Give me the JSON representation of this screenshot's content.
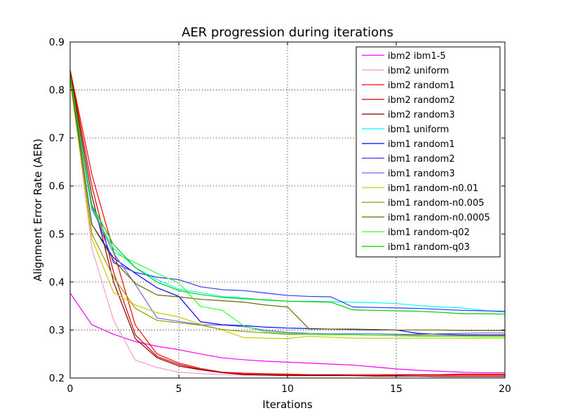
{
  "chart_data": {
    "type": "line",
    "title": "AER progression during iterations",
    "xlabel": "Iterations",
    "ylabel": "Alignment Error Rate (AER)",
    "xlim": [
      0,
      20
    ],
    "ylim": [
      0.2,
      0.9
    ],
    "xticks": [
      0,
      5,
      10,
      15,
      20
    ],
    "yticks": [
      0.2,
      0.3,
      0.4,
      0.5,
      0.6,
      0.7,
      0.8,
      0.9
    ],
    "xtick_labels": [
      "0",
      "5",
      "10",
      "15",
      "20"
    ],
    "ytick_labels": [
      "0.2",
      "0.3",
      "0.4",
      "0.5",
      "0.6",
      "0.7",
      "0.8",
      "0.9"
    ],
    "grid": true,
    "legend_position": "top-right",
    "x": [
      0,
      1,
      2,
      3,
      4,
      5,
      6,
      7,
      8,
      9,
      10,
      11,
      12,
      13,
      14,
      15,
      16,
      17,
      18,
      19,
      20
    ],
    "series": [
      {
        "name": "ibm2 ibm1-5",
        "color": "#ff00ff",
        "values": [
          0.377,
          0.311,
          0.291,
          0.276,
          0.266,
          0.259,
          0.25,
          0.242,
          0.238,
          0.235,
          0.233,
          0.231,
          0.229,
          0.227,
          0.223,
          0.219,
          0.216,
          0.214,
          0.212,
          0.211,
          0.211
        ]
      },
      {
        "name": "ibm2 uniform",
        "color": "#ff99cc",
        "values": [
          0.838,
          0.47,
          0.32,
          0.237,
          0.222,
          0.212,
          0.209,
          0.207,
          0.206,
          0.206,
          0.205,
          0.205,
          0.205,
          0.205,
          0.205,
          0.205,
          0.205,
          0.205,
          0.205,
          0.205,
          0.205
        ]
      },
      {
        "name": "ibm2 random1",
        "color": "#ff0000",
        "values": [
          0.842,
          0.624,
          0.464,
          0.31,
          0.25,
          0.231,
          0.22,
          0.212,
          0.21,
          0.209,
          0.208,
          0.207,
          0.207,
          0.207,
          0.207,
          0.207,
          0.207,
          0.206,
          0.206,
          0.206,
          0.206
        ]
      },
      {
        "name": "ibm2 random2",
        "color": "#cc0000",
        "values": [
          0.84,
          0.6,
          0.42,
          0.29,
          0.245,
          0.228,
          0.218,
          0.211,
          0.208,
          0.207,
          0.206,
          0.206,
          0.206,
          0.205,
          0.205,
          0.206,
          0.207,
          0.207,
          0.208,
          0.208,
          0.208
        ]
      },
      {
        "name": "ibm2 random3",
        "color": "#800000",
        "values": [
          0.836,
          0.58,
          0.4,
          0.282,
          0.242,
          0.225,
          0.217,
          0.211,
          0.207,
          0.206,
          0.205,
          0.205,
          0.205,
          0.205,
          0.204,
          0.204,
          0.204,
          0.203,
          0.203,
          0.203,
          0.203
        ]
      },
      {
        "name": "ibm1 uniform",
        "color": "#00ffff",
        "values": [
          0.825,
          0.55,
          0.47,
          0.43,
          0.405,
          0.385,
          0.378,
          0.37,
          0.367,
          0.362,
          0.36,
          0.36,
          0.359,
          0.358,
          0.357,
          0.355,
          0.351,
          0.348,
          0.346,
          0.341,
          0.337
        ]
      },
      {
        "name": "ibm1 random1",
        "color": "#0000ff",
        "values": [
          0.828,
          0.52,
          0.45,
          0.418,
          0.388,
          0.37,
          0.317,
          0.311,
          0.309,
          0.306,
          0.304,
          0.303,
          0.302,
          0.301,
          0.3,
          0.3,
          0.293,
          0.291,
          0.29,
          0.29,
          0.29
        ]
      },
      {
        "name": "ibm1 random2",
        "color": "#3333ff",
        "values": [
          0.826,
          0.56,
          0.44,
          0.42,
          0.41,
          0.405,
          0.39,
          0.384,
          0.382,
          0.377,
          0.372,
          0.37,
          0.369,
          0.348,
          0.347,
          0.346,
          0.345,
          0.343,
          0.341,
          0.34,
          0.339
        ]
      },
      {
        "name": "ibm1 random3",
        "color": "#6666ff",
        "values": [
          0.824,
          0.555,
          0.46,
          0.395,
          0.325,
          0.318,
          0.311,
          0.31,
          0.307,
          0.299,
          0.295,
          0.293,
          0.292,
          0.292,
          0.292,
          0.291,
          0.291,
          0.292,
          0.293,
          0.294,
          0.294
        ]
      },
      {
        "name": "ibm1 random-n0.01",
        "color": "#cccc00",
        "values": [
          0.82,
          0.49,
          0.378,
          0.352,
          0.336,
          0.327,
          0.312,
          0.3,
          0.284,
          0.283,
          0.282,
          0.287,
          0.285,
          0.283,
          0.283,
          0.283,
          0.283,
          0.283,
          0.283,
          0.283,
          0.283
        ]
      },
      {
        "name": "ibm1 random-n0.005",
        "color": "#999900",
        "values": [
          0.822,
          0.5,
          0.41,
          0.345,
          0.32,
          0.315,
          0.31,
          0.301,
          0.297,
          0.294,
          0.291,
          0.291,
          0.29,
          0.29,
          0.289,
          0.289,
          0.289,
          0.288,
          0.288,
          0.288,
          0.288
        ]
      },
      {
        "name": "ibm1 random-n0.0005",
        "color": "#666600",
        "values": [
          0.828,
          0.52,
          0.445,
          0.397,
          0.373,
          0.369,
          0.364,
          0.361,
          0.358,
          0.352,
          0.348,
          0.302,
          0.302,
          0.302,
          0.301,
          0.3,
          0.3,
          0.3,
          0.299,
          0.299,
          0.299
        ]
      },
      {
        "name": "ibm1 random-q02",
        "color": "#33ff33",
        "values": [
          0.83,
          0.56,
          0.462,
          0.44,
          0.418,
          0.398,
          0.349,
          0.341,
          0.308,
          0.296,
          0.293,
          0.292,
          0.291,
          0.29,
          0.289,
          0.288,
          0.287,
          0.287,
          0.287,
          0.286,
          0.286
        ]
      },
      {
        "name": "ibm1 random-q03",
        "color": "#00cc00",
        "values": [
          0.832,
          0.56,
          0.478,
          0.43,
          0.4,
          0.382,
          0.374,
          0.368,
          0.365,
          0.363,
          0.36,
          0.359,
          0.358,
          0.342,
          0.341,
          0.34,
          0.339,
          0.337,
          0.334,
          0.334,
          0.333
        ]
      }
    ]
  }
}
